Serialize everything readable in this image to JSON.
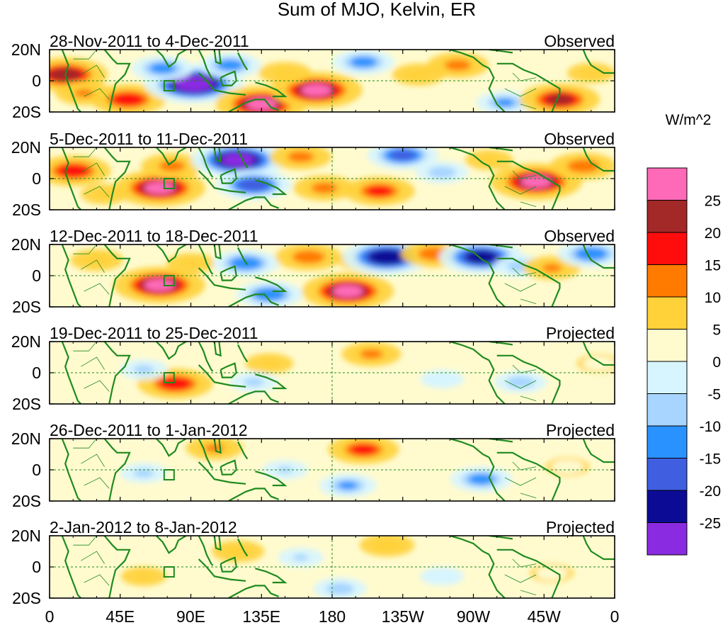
{
  "chart_data": {
    "type": "heatmap",
    "title": "Sum of MJO, Kelvin, ER",
    "units": "W/m^2",
    "x_ticks": [
      "0",
      "45E",
      "90E",
      "135E",
      "180",
      "135W",
      "90W",
      "45W",
      "0"
    ],
    "x_values": [
      0,
      45,
      90,
      135,
      180,
      225,
      270,
      315,
      360
    ],
    "y_ticks": [
      "20N",
      "0",
      "20S"
    ],
    "y_values": [
      20,
      0,
      -20
    ],
    "xlim": [
      0,
      360
    ],
    "ylim": [
      -20,
      20
    ],
    "colorbar": {
      "labels": [
        "25",
        "20",
        "15",
        "10",
        "5",
        "0",
        "-5",
        "-10",
        "-15",
        "-20",
        "-25"
      ],
      "levels": [
        25,
        20,
        15,
        10,
        5,
        0,
        -5,
        -10,
        -15,
        -20,
        -25
      ],
      "colors": [
        "#ff6ab8",
        "#a32828",
        "#ff0d0d",
        "#ff7b00",
        "#ffd23a",
        "#fffbcf",
        "#d7f5ff",
        "#a7d5ff",
        "#2a92ff",
        "#3f5ee0",
        "#0b0b96",
        "#8a2be2"
      ]
    },
    "panels": [
      {
        "period": "28-Nov-2011 to 4-Dec-2011",
        "status": "Observed",
        "blobs": [
          {
            "lon": 10,
            "lat": 4,
            "value": 22
          },
          {
            "lon": 22,
            "lat": -8,
            "value": 10
          },
          {
            "lon": 50,
            "lat": -12,
            "value": 18
          },
          {
            "lon": 92,
            "lat": -2,
            "value": -28
          },
          {
            "lon": 72,
            "lat": 8,
            "value": -12
          },
          {
            "lon": 115,
            "lat": 10,
            "value": -12
          },
          {
            "lon": 135,
            "lat": -15,
            "value": 25
          },
          {
            "lon": 170,
            "lat": -6,
            "value": 25
          },
          {
            "lon": 150,
            "lat": 5,
            "value": 8
          },
          {
            "lon": 200,
            "lat": 12,
            "value": -12
          },
          {
            "lon": 235,
            "lat": 4,
            "value": 8
          },
          {
            "lon": 260,
            "lat": 10,
            "value": 12
          },
          {
            "lon": 290,
            "lat": -14,
            "value": -10
          },
          {
            "lon": 325,
            "lat": -12,
            "value": 20
          },
          {
            "lon": 345,
            "lat": 5,
            "value": 6
          }
        ]
      },
      {
        "period": "5-Dec-2011 to 11-Dec-2011",
        "status": "Observed",
        "blobs": [
          {
            "lon": 15,
            "lat": 5,
            "value": 18
          },
          {
            "lon": 35,
            "lat": -10,
            "value": 6
          },
          {
            "lon": 70,
            "lat": -6,
            "value": 25
          },
          {
            "lon": 78,
            "lat": 8,
            "value": 12
          },
          {
            "lon": 120,
            "lat": 12,
            "value": -26
          },
          {
            "lon": 130,
            "lat": -4,
            "value": -18
          },
          {
            "lon": 160,
            "lat": 14,
            "value": 12
          },
          {
            "lon": 175,
            "lat": -6,
            "value": 12
          },
          {
            "lon": 210,
            "lat": -8,
            "value": 16
          },
          {
            "lon": 225,
            "lat": 15,
            "value": -16
          },
          {
            "lon": 250,
            "lat": 4,
            "value": -8
          },
          {
            "lon": 310,
            "lat": -2,
            "value": 25
          },
          {
            "lon": 340,
            "lat": 8,
            "value": 14
          },
          {
            "lon": 280,
            "lat": 12,
            "value": 6
          }
        ]
      },
      {
        "period": "12-Dec-2011 to 18-Dec-2011",
        "status": "Observed",
        "blobs": [
          {
            "lon": 30,
            "lat": 10,
            "value": 8
          },
          {
            "lon": 70,
            "lat": -6,
            "value": 25
          },
          {
            "lon": 90,
            "lat": 8,
            "value": 6
          },
          {
            "lon": 125,
            "lat": 8,
            "value": -14
          },
          {
            "lon": 140,
            "lat": -12,
            "value": -14
          },
          {
            "lon": 165,
            "lat": 12,
            "value": 14
          },
          {
            "lon": 190,
            "lat": -10,
            "value": 25
          },
          {
            "lon": 200,
            "lat": 10,
            "value": 8
          },
          {
            "lon": 215,
            "lat": 12,
            "value": -24
          },
          {
            "lon": 245,
            "lat": 14,
            "value": 14
          },
          {
            "lon": 275,
            "lat": 12,
            "value": -22
          },
          {
            "lon": 300,
            "lat": 6,
            "value": -8
          },
          {
            "lon": 320,
            "lat": 5,
            "value": 10
          },
          {
            "lon": 345,
            "lat": 14,
            "value": -14
          }
        ]
      },
      {
        "period": "19-Dec-2011 to 25-Dec-2011",
        "status": "Projected",
        "blobs": [
          {
            "lon": 80,
            "lat": -7,
            "value": 18
          },
          {
            "lon": 60,
            "lat": 2,
            "value": -6
          },
          {
            "lon": 140,
            "lat": 6,
            "value": 6
          },
          {
            "lon": 130,
            "lat": -6,
            "value": -6
          },
          {
            "lon": 205,
            "lat": 12,
            "value": 11
          },
          {
            "lon": 250,
            "lat": -4,
            "value": -4
          },
          {
            "lon": 300,
            "lat": -6,
            "value": -8
          },
          {
            "lon": 350,
            "lat": 6,
            "value": 4
          }
        ]
      },
      {
        "period": "26-Dec-2011 to 1-Jan-2012",
        "status": "Projected",
        "blobs": [
          {
            "lon": 105,
            "lat": 14,
            "value": 10
          },
          {
            "lon": 200,
            "lat": 13,
            "value": 16
          },
          {
            "lon": 190,
            "lat": -10,
            "value": -10
          },
          {
            "lon": 150,
            "lat": 0,
            "value": -5
          },
          {
            "lon": 60,
            "lat": -2,
            "value": -6
          },
          {
            "lon": 275,
            "lat": -6,
            "value": -12
          },
          {
            "lon": 330,
            "lat": 2,
            "value": 4
          }
        ]
      },
      {
        "period": "2-Jan-2012 to 8-Jan-2012",
        "status": "Projected",
        "blobs": [
          {
            "lon": 120,
            "lat": 10,
            "value": 8
          },
          {
            "lon": 215,
            "lat": 14,
            "value": 9
          },
          {
            "lon": 185,
            "lat": -14,
            "value": -8
          },
          {
            "lon": 160,
            "lat": 6,
            "value": -5
          },
          {
            "lon": 60,
            "lat": -6,
            "value": 5
          },
          {
            "lon": 250,
            "lat": -6,
            "value": -4
          },
          {
            "lon": 320,
            "lat": -4,
            "value": 4
          }
        ]
      }
    ]
  }
}
